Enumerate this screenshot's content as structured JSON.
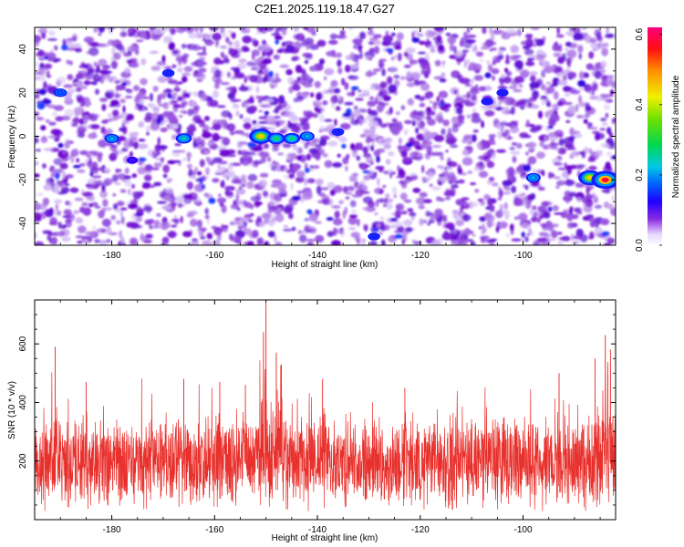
{
  "title": "C2E1.2025.119.18.47.G27",
  "colors": {
    "snr_line": "#e8302c",
    "spectrogram_palette": [
      "#ffffff",
      "#c9a8f2",
      "#9b3fe0",
      "#6a00d6",
      "#3a1dd8",
      "#0044ff",
      "#00c8e8",
      "#10d860",
      "#88e800",
      "#ffee00",
      "#ff8800",
      "#ff0000",
      "#ff0080"
    ]
  },
  "chart_data": [
    {
      "type": "heatmap",
      "xlabel": "Height of straight line (km)",
      "ylabel": "Frequency (Hz)",
      "xlim": [
        -195,
        -82
      ],
      "ylim": [
        -50,
        50
      ],
      "xticks": [
        -180,
        -160,
        -140,
        -120,
        -100
      ],
      "yticks": [
        -40,
        -20,
        0,
        20,
        40
      ],
      "colorbar": {
        "label": "Normalized spectral amplitude",
        "range": [
          0.0,
          0.62
        ],
        "ticks": [
          0.0,
          0.2,
          0.4,
          0.6
        ]
      },
      "hotspots": [
        {
          "x": -151,
          "y": 0,
          "value": 0.45
        },
        {
          "x": -148,
          "y": -1,
          "value": 0.3
        },
        {
          "x": -145,
          "y": -1,
          "value": 0.28
        },
        {
          "x": -166,
          "y": -1,
          "value": 0.25
        },
        {
          "x": -180,
          "y": -1,
          "value": 0.22
        },
        {
          "x": -142,
          "y": 0,
          "value": 0.22
        },
        {
          "x": -136,
          "y": 2,
          "value": 0.15
        },
        {
          "x": -190,
          "y": 20,
          "value": 0.18
        },
        {
          "x": -169,
          "y": 29,
          "value": 0.15
        },
        {
          "x": -107,
          "y": 16,
          "value": 0.14
        },
        {
          "x": -104,
          "y": 20,
          "value": 0.14
        },
        {
          "x": -98,
          "y": -19,
          "value": 0.22
        },
        {
          "x": -176,
          "y": -11,
          "value": 0.12
        },
        {
          "x": -87,
          "y": -19,
          "value": 0.45
        },
        {
          "x": -84,
          "y": -20,
          "value": 0.58
        },
        {
          "x": -129,
          "y": -46,
          "value": 0.15
        }
      ]
    },
    {
      "type": "line",
      "xlabel": "Height of straight line (km)",
      "ylabel": "SNR (10 * v/v)",
      "xlim": [
        -195,
        -82
      ],
      "ylim": [
        0,
        750
      ],
      "xticks": [
        -180,
        -160,
        -140,
        -120,
        -100
      ],
      "yticks": [
        200,
        400,
        600
      ],
      "series": [
        {
          "baseline_mean": 190,
          "baseline_spread": 130,
          "spikes": [
            {
              "x": -150,
              "y": 750
            },
            {
              "x": -150.5,
              "y": 640
            },
            {
              "x": -148,
              "y": 570
            },
            {
              "x": -147,
              "y": 530
            },
            {
              "x": -191,
              "y": 590
            },
            {
              "x": -185,
              "y": 470
            },
            {
              "x": -166,
              "y": 480
            },
            {
              "x": -159,
              "y": 470
            },
            {
              "x": -154,
              "y": 460
            },
            {
              "x": -139,
              "y": 480
            },
            {
              "x": -123,
              "y": 450
            },
            {
              "x": -93,
              "y": 500
            },
            {
              "x": -86,
              "y": 550
            },
            {
              "x": -84,
              "y": 630
            },
            {
              "x": -83,
              "y": 580
            }
          ]
        }
      ]
    }
  ]
}
